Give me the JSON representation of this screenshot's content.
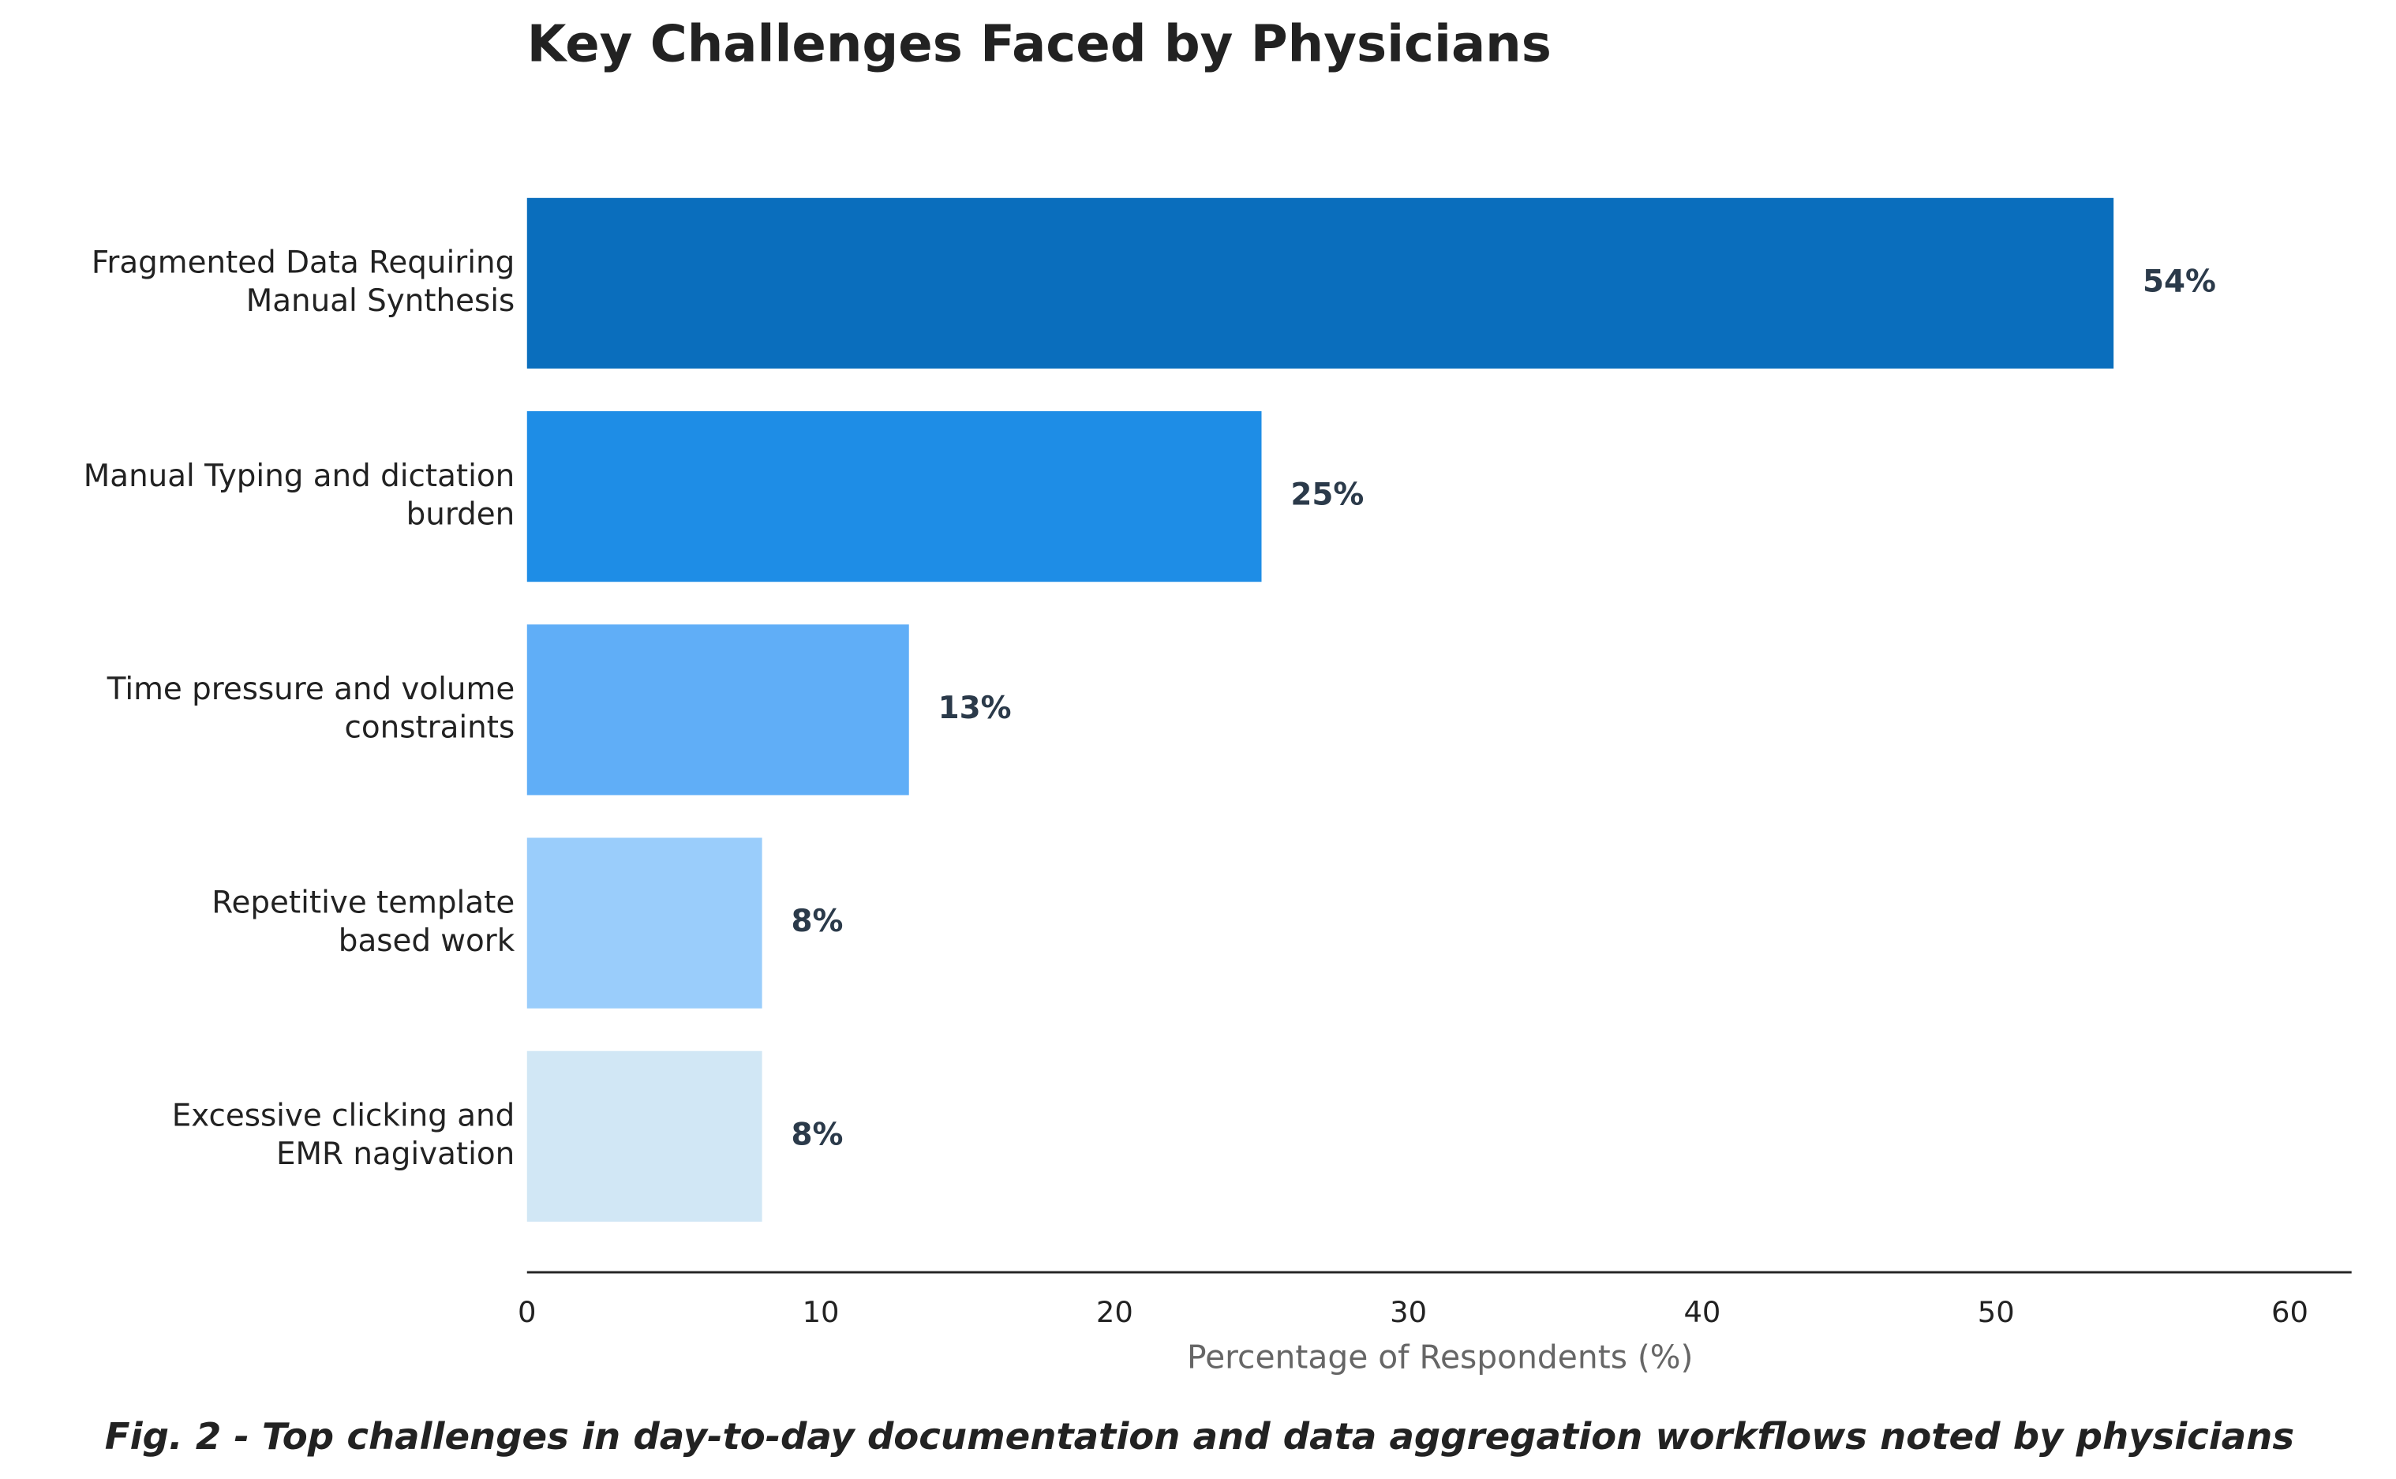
{
  "chart_data": {
    "type": "barh",
    "title": "Key Challenges Faced by Physicians",
    "categories": [
      "Fragmented Data Requiring\nManual Synthesis",
      "Manual Typing and dictation\nburden",
      "Time pressure and volume\nconstraints",
      "Repetitive template\nbased work",
      "Excessive clicking and\nEMR nagivation"
    ],
    "values": [
      54,
      25,
      13,
      8,
      8
    ],
    "value_labels": [
      "54%",
      "25%",
      "13%",
      "8%",
      "8%"
    ],
    "colors": [
      "#0a6ebd",
      "#1e8de6",
      "#60aef7",
      "#9acdfb",
      "#d1e7f5"
    ],
    "xlim": [
      0,
      62.1
    ],
    "xticks": [
      0,
      10,
      20,
      30,
      40,
      50,
      60
    ],
    "xlabel": "Percentage of Respondents (%)",
    "caption": "Fig. 2 - Top challenges in day-to-day documentation and data aggregation workflows noted by physicians"
  }
}
